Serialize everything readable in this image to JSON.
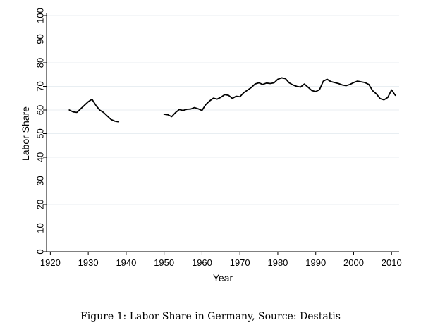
{
  "chart_data": {
    "type": "line",
    "title": "",
    "xlabel": "Year",
    "ylabel": "Labor Share",
    "xlim": [
      1919,
      2012
    ],
    "ylim": [
      0,
      100
    ],
    "xticks": [
      1920,
      1930,
      1940,
      1950,
      1960,
      1970,
      1980,
      1990,
      2000,
      2010
    ],
    "yticks": [
      0,
      10,
      20,
      30,
      40,
      50,
      60,
      70,
      80,
      90,
      100
    ],
    "grid": true,
    "legend": "none",
    "colors": {
      "line": "#000000",
      "grid": "#e8eef2",
      "axis": "#000000"
    },
    "series": [
      {
        "segments": [
          [
            [
              1925,
              60.0
            ],
            [
              1926,
              59.2
            ],
            [
              1927,
              59.0
            ],
            [
              1928,
              60.5
            ],
            [
              1929,
              62.0
            ],
            [
              1930,
              63.5
            ],
            [
              1931,
              64.5
            ],
            [
              1932,
              62.0
            ],
            [
              1933,
              60.0
            ],
            [
              1934,
              59.0
            ],
            [
              1935,
              57.5
            ],
            [
              1936,
              56.0
            ],
            [
              1937,
              55.3
            ],
            [
              1938,
              55.0
            ]
          ],
          [
            [
              1950,
              58.2
            ],
            [
              1951,
              58.0
            ],
            [
              1952,
              57.2
            ],
            [
              1953,
              58.9
            ],
            [
              1954,
              60.2
            ],
            [
              1955,
              59.8
            ],
            [
              1956,
              60.3
            ],
            [
              1957,
              60.4
            ],
            [
              1958,
              61.0
            ],
            [
              1959,
              60.5
            ],
            [
              1960,
              59.8
            ],
            [
              1961,
              62.3
            ],
            [
              1962,
              63.8
            ],
            [
              1963,
              65.0
            ],
            [
              1964,
              64.6
            ],
            [
              1965,
              65.4
            ],
            [
              1966,
              66.5
            ],
            [
              1967,
              66.2
            ],
            [
              1968,
              64.9
            ],
            [
              1969,
              65.8
            ],
            [
              1970,
              65.6
            ],
            [
              1971,
              67.3
            ],
            [
              1972,
              68.4
            ],
            [
              1973,
              69.5
            ],
            [
              1974,
              71.0
            ],
            [
              1975,
              71.5
            ],
            [
              1976,
              70.8
            ],
            [
              1977,
              71.4
            ],
            [
              1978,
              71.2
            ],
            [
              1979,
              71.5
            ],
            [
              1980,
              73.0
            ],
            [
              1981,
              73.6
            ],
            [
              1982,
              73.3
            ],
            [
              1983,
              71.5
            ],
            [
              1984,
              70.6
            ],
            [
              1985,
              70.0
            ],
            [
              1986,
              69.7
            ],
            [
              1987,
              71.0
            ],
            [
              1988,
              69.6
            ],
            [
              1989,
              68.2
            ],
            [
              1990,
              67.8
            ],
            [
              1991,
              68.6
            ],
            [
              1992,
              72.2
            ],
            [
              1993,
              73.0
            ],
            [
              1994,
              72.0
            ],
            [
              1995,
              71.6
            ],
            [
              1996,
              71.2
            ],
            [
              1997,
              70.6
            ],
            [
              1998,
              70.3
            ],
            [
              1999,
              70.8
            ],
            [
              2000,
              71.6
            ],
            [
              2001,
              72.2
            ],
            [
              2002,
              71.9
            ],
            [
              2003,
              71.6
            ],
            [
              2004,
              70.8
            ],
            [
              2005,
              68.2
            ],
            [
              2006,
              66.8
            ],
            [
              2007,
              64.8
            ],
            [
              2008,
              64.3
            ],
            [
              2009,
              65.3
            ],
            [
              2010,
              68.5
            ],
            [
              2011,
              66.2
            ]
          ]
        ]
      }
    ]
  },
  "caption": "Figure 1: Labor Share in Germany, Source: Destatis"
}
